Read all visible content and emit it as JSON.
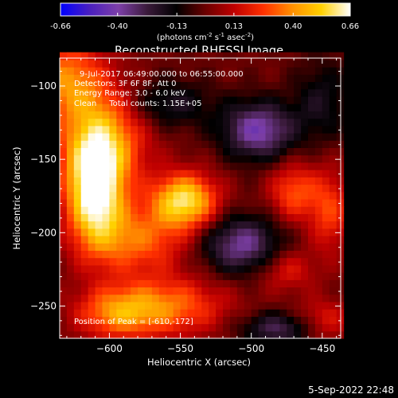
{
  "colorbar": {
    "ticks": [
      "-0.66",
      "-0.40",
      "-0.13",
      "0.13",
      "0.40",
      "0.66"
    ],
    "min": -0.66,
    "max": 0.66,
    "units_parts": [
      "(photons cm",
      "-2",
      " s",
      "-1",
      " asec",
      "-2",
      ")"
    ],
    "colors": [
      "#0000ff",
      "#4a1fbf",
      "#7d3fa8",
      "#3a1a3a",
      "#000000",
      "#6a0000",
      "#c00000",
      "#ff3000",
      "#ff9000",
      "#ffd000",
      "#ffffff"
    ]
  },
  "chart_data": {
    "type": "heatmap",
    "title": "Reconstructed RHESSI Image",
    "xlabel": "Heliocentric X (arcsec)",
    "ylabel": "Heliocentric Y (arcsec)",
    "xlim": [
      -635,
      -437
    ],
    "ylim": [
      -272,
      -81
    ],
    "x_ticks": [
      -600,
      -550,
      -500,
      -450
    ],
    "y_ticks": [
      -100,
      -150,
      -200,
      -250
    ],
    "annotations": [
      "9-Jul-2017 06:49:00.000 to 06:55:00.000",
      "Detectors: 3F 6F 8F, Att 0",
      "Energy Range: 3.0 - 6.0 keV",
      "Clean     Total counts: 1.15E+05"
    ],
    "peak_label": "Position of Peak = [-610,-172]",
    "peak": [
      -610,
      -172
    ],
    "sources": [
      {
        "x": -610,
        "y": -172,
        "sx": 14,
        "sy": 26,
        "amp": 0.66
      },
      {
        "x": -605,
        "y": -135,
        "sx": 22,
        "sy": 25,
        "amp": 0.42
      },
      {
        "x": -630,
        "y": -95,
        "sx": 18,
        "sy": 18,
        "amp": 0.35
      },
      {
        "x": -547,
        "y": -178,
        "sx": 16,
        "sy": 13,
        "amp": 0.58
      },
      {
        "x": -580,
        "y": -205,
        "sx": 24,
        "sy": 16,
        "amp": 0.32
      },
      {
        "x": -560,
        "y": -250,
        "sx": 30,
        "sy": 14,
        "amp": 0.34
      },
      {
        "x": -595,
        "y": -255,
        "sx": 20,
        "sy": 12,
        "amp": 0.3
      },
      {
        "x": -470,
        "y": -172,
        "sx": 12,
        "sy": 14,
        "amp": 0.3
      },
      {
        "x": -445,
        "y": -185,
        "sx": 10,
        "sy": 20,
        "amp": 0.26
      },
      {
        "x": -475,
        "y": -225,
        "sx": 14,
        "sy": 10,
        "amp": 0.2
      },
      {
        "x": -450,
        "y": -260,
        "sx": 14,
        "sy": 10,
        "amp": 0.22
      },
      {
        "x": -495,
        "y": -130,
        "sx": 18,
        "sy": 14,
        "amp": -0.42
      },
      {
        "x": -507,
        "y": -208,
        "sx": 20,
        "sy": 14,
        "amp": -0.38
      },
      {
        "x": -560,
        "y": -112,
        "sx": 22,
        "sy": 12,
        "amp": -0.22
      },
      {
        "x": -480,
        "y": -265,
        "sx": 20,
        "sy": 8,
        "amp": -0.3
      },
      {
        "x": -450,
        "y": -110,
        "sx": 14,
        "sy": 20,
        "amp": -0.18
      }
    ]
  },
  "footer": {
    "timestamp": "5-Sep-2022 22:48"
  }
}
